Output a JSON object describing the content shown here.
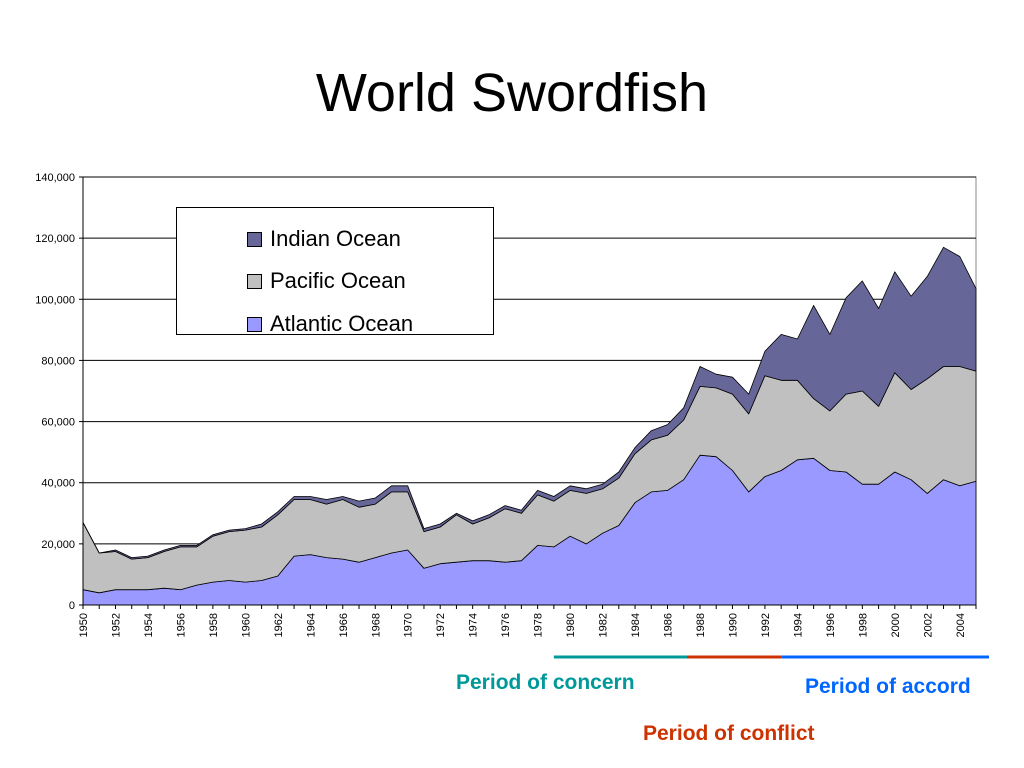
{
  "title": "World Swordfish",
  "chart_data": {
    "type": "area",
    "stacked": true,
    "x": [
      1950,
      1951,
      1952,
      1953,
      1954,
      1955,
      1956,
      1957,
      1958,
      1959,
      1960,
      1961,
      1962,
      1963,
      1964,
      1965,
      1966,
      1967,
      1968,
      1969,
      1970,
      1971,
      1972,
      1973,
      1974,
      1975,
      1976,
      1977,
      1978,
      1979,
      1980,
      1981,
      1982,
      1983,
      1984,
      1985,
      1986,
      1987,
      1988,
      1989,
      1990,
      1991,
      1992,
      1993,
      1994,
      1995,
      1996,
      1997,
      1998,
      1999,
      2000,
      2001,
      2002,
      2003,
      2004,
      2005
    ],
    "x_tick_labels": [
      "1950",
      "1952",
      "1954",
      "1956",
      "1958",
      "1960",
      "1962",
      "1964",
      "1966",
      "1968",
      "1970",
      "1972",
      "1974",
      "1976",
      "1978",
      "1980",
      "1982",
      "1984",
      "1986",
      "1988",
      "1990",
      "1992",
      "1994",
      "1996",
      "1998",
      "2000",
      "2002",
      "2004"
    ],
    "y_tick_labels": [
      "0",
      "20,000",
      "40,000",
      "60,000",
      "80,000",
      "100,000",
      "120,000",
      "140,000"
    ],
    "ylim": [
      0,
      140000
    ],
    "grid": true,
    "legend_position": "top-left",
    "series": [
      {
        "name": "Atlantic Ocean",
        "color": "#9999ff",
        "values": [
          5000,
          4000,
          5000,
          5000,
          5000,
          5500,
          5000,
          6500,
          7500,
          8000,
          7500,
          8000,
          9500,
          16000,
          16500,
          15500,
          15000,
          14000,
          15500,
          17000,
          18000,
          12000,
          13500,
          14000,
          14500,
          14500,
          14000,
          14500,
          19500,
          19000,
          22500,
          20000,
          23500,
          26000,
          33500,
          37000,
          37500,
          41000,
          49000,
          48500,
          44000,
          37000,
          42000,
          44000,
          47500,
          48000,
          44000,
          43500,
          39500,
          39500,
          43500,
          41000,
          36500,
          41000,
          39000,
          40500
        ]
      },
      {
        "name": "Pacific Ocean",
        "color": "#c0c0c0",
        "values": [
          22000,
          13000,
          12500,
          10000,
          10500,
          12000,
          14000,
          12500,
          15000,
          16000,
          17000,
          17500,
          20000,
          18500,
          18000,
          17500,
          19500,
          18000,
          17500,
          20000,
          19000,
          12000,
          12000,
          15500,
          12000,
          14000,
          17500,
          15500,
          16500,
          15000,
          15000,
          16500,
          14500,
          15500,
          16000,
          17000,
          18000,
          19500,
          22500,
          22500,
          25000,
          25500,
          33000,
          29500,
          26000,
          19500,
          19500,
          25500,
          30500,
          25500,
          32500,
          29500,
          37500,
          37000,
          39000,
          36000
        ]
      },
      {
        "name": "Indian Ocean",
        "color": "#666699",
        "values": [
          0,
          0,
          500,
          500,
          500,
          500,
          500,
          500,
          500,
          500,
          500,
          1000,
          1000,
          1000,
          1000,
          1500,
          1000,
          2000,
          2000,
          2000,
          2000,
          1000,
          1000,
          500,
          1000,
          1000,
          1000,
          1000,
          1500,
          1500,
          1500,
          1500,
          1500,
          2000,
          2000,
          3000,
          3500,
          4000,
          6500,
          4500,
          5500,
          6500,
          8000,
          15000,
          13500,
          30500,
          25000,
          31500,
          36000,
          32000,
          33000,
          30500,
          33500,
          39000,
          36000,
          27000
        ]
      }
    ]
  },
  "periods": [
    {
      "label": "Period of concern",
      "color": "#009999",
      "start": 1979,
      "end": 1987.2
    },
    {
      "label": "Period of conflict",
      "color": "#cc3300",
      "start": 1987.2,
      "end": 1993
    },
    {
      "label": "Period of accord",
      "color": "#0066ff",
      "start": 1993,
      "end": 2005.8
    }
  ]
}
